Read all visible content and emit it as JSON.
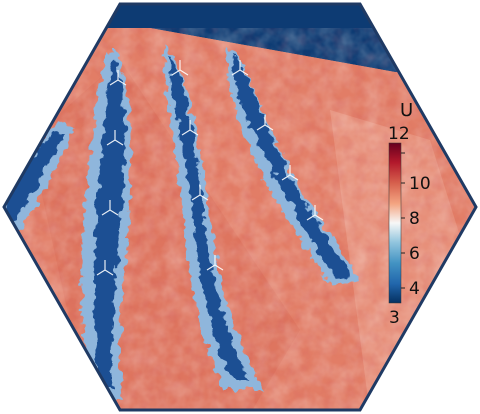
{
  "colorbar": {
    "title": "U",
    "ticks": [
      "12",
      "10",
      "8",
      "6",
      "4",
      "3"
    ],
    "colormap": [
      "#053061",
      "#2166ac",
      "#4393c3",
      "#92c5de",
      "#f7f7f7",
      "#f4a582",
      "#d6604d",
      "#b2182b",
      "#67001f"
    ]
  },
  "colors": {
    "sky": "#0d3b73",
    "frame": "#1f3a64",
    "field_red": "#e0826a",
    "field_light": "#f3c6b4",
    "wake_dark": "#1b4f93",
    "wake_light": "#8fb6dc"
  },
  "wake_rows": 4,
  "turbine_glyph": "rotor-icon"
}
